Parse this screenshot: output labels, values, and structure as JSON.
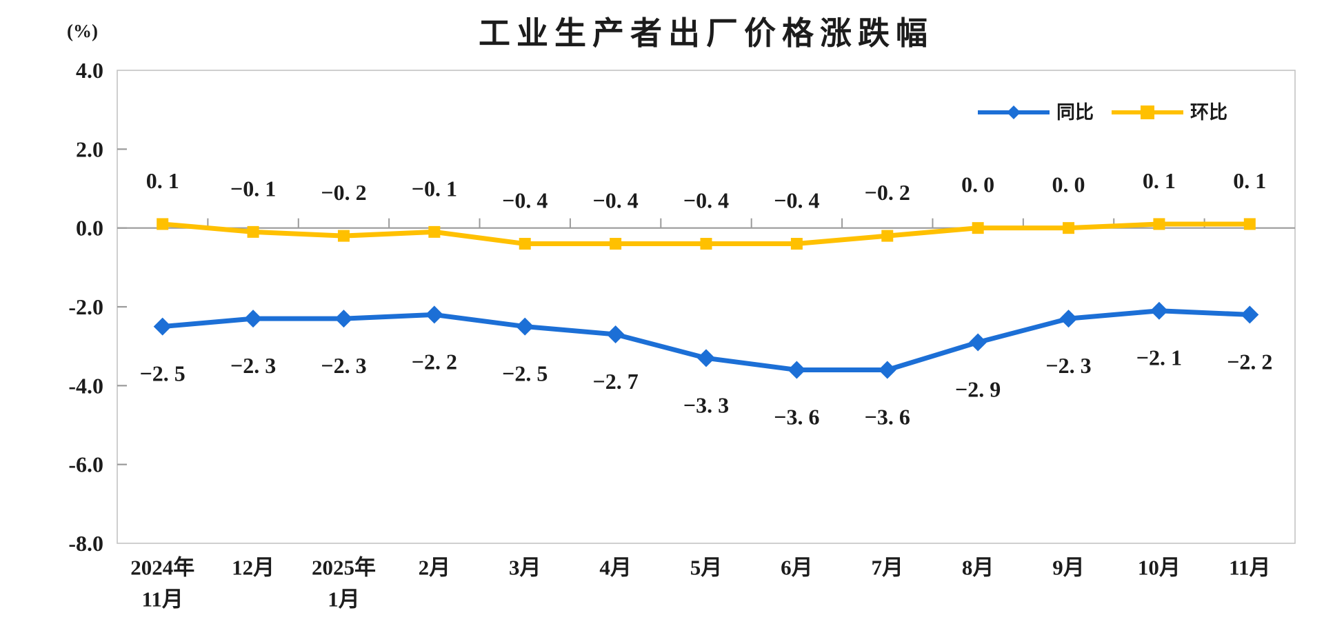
{
  "page": {
    "background": "#ffffff"
  },
  "chart_data": {
    "type": "line",
    "title": "工业生产者出厂价格涨跌幅",
    "unit_label": "(%)",
    "legend_position": "top-right-inside",
    "grid": "zero-line-only",
    "categories": [
      [
        "2024年",
        "11月"
      ],
      [
        "12月"
      ],
      [
        "2025年",
        "1月"
      ],
      [
        "2月"
      ],
      [
        "3月"
      ],
      [
        "4月"
      ],
      [
        "5月"
      ],
      [
        "6月"
      ],
      [
        "7月"
      ],
      [
        "8月"
      ],
      [
        "9月"
      ],
      [
        "10月"
      ],
      [
        "11月"
      ]
    ],
    "y_axis": {
      "min": -8.0,
      "max": 4.0,
      "tick_step": 2.0,
      "tick_values": [
        4,
        2,
        0,
        -2,
        -4,
        -6,
        -8
      ],
      "tick_labels": [
        "4.0",
        "2.0",
        "0.0",
        "-2.0",
        "-4.0",
        "-6.0",
        "-8.0"
      ]
    },
    "series": [
      {
        "name": "同比",
        "color": "#1C6FD6",
        "marker": "diamond",
        "label_side": "below",
        "values": [
          -2.5,
          -2.3,
          -2.3,
          -2.2,
          -2.5,
          -2.7,
          -3.3,
          -3.6,
          -3.6,
          -2.9,
          -2.3,
          -2.1,
          -2.2
        ],
        "labels": [
          "−2. 5",
          "−2. 3",
          "−2. 3",
          "−2. 2",
          "−2. 5",
          "−2. 7",
          "−3. 3",
          "−3. 6",
          "−3. 6",
          "−2. 9",
          "−2. 3",
          "−2. 1",
          "−2. 2"
        ]
      },
      {
        "name": "环比",
        "color": "#FFC000",
        "marker": "square",
        "label_side": "above",
        "values": [
          0.1,
          -0.1,
          -0.2,
          -0.1,
          -0.4,
          -0.4,
          -0.4,
          -0.4,
          -0.2,
          0.0,
          0.0,
          0.1,
          0.1
        ],
        "labels": [
          "0. 1",
          "−0. 1",
          "−0. 2",
          "−0. 1",
          "−0. 4",
          "−0. 4",
          "−0. 4",
          "−0. 4",
          "−0. 2",
          "0. 0",
          "0. 0",
          "0. 1",
          "0. 1"
        ]
      }
    ],
    "colors": {
      "zero_line": "#9a9a9a",
      "plot_border": "#c3c3c3",
      "text": "#1c1c1c"
    }
  }
}
